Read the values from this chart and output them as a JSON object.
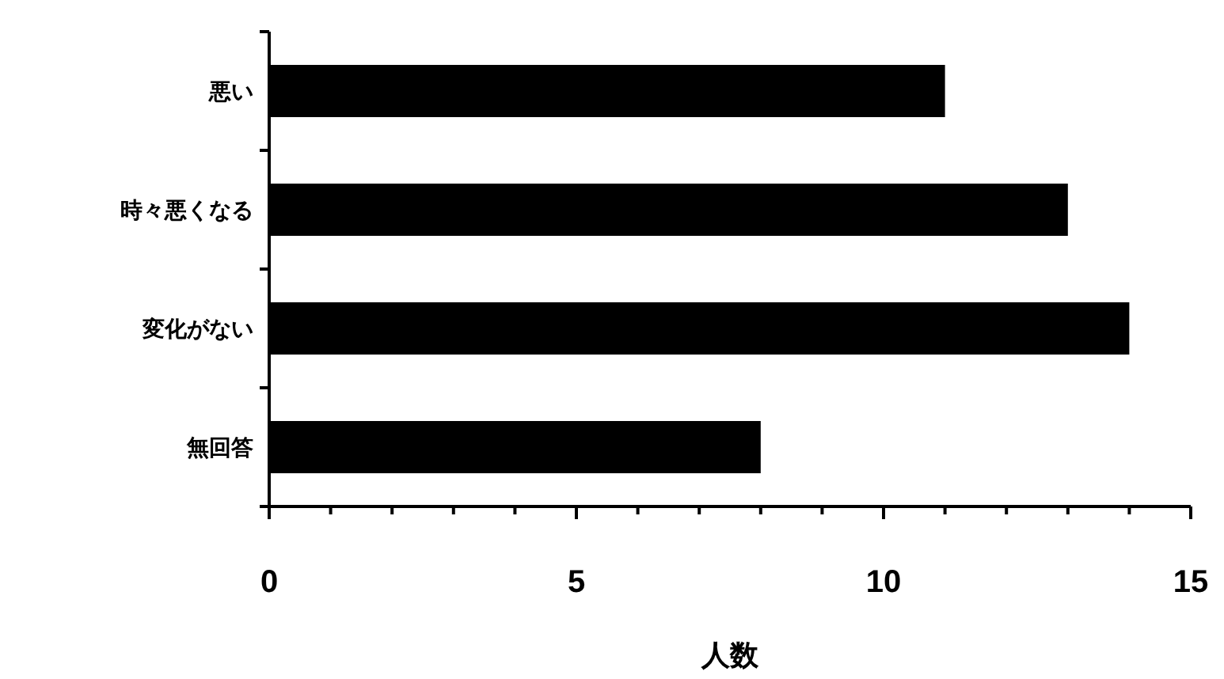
{
  "chart_data": {
    "type": "bar",
    "orientation": "horizontal",
    "xlabel": "人数",
    "categories": [
      "悪い",
      "時々悪くなる",
      "変化がない",
      "無回答"
    ],
    "values": [
      11,
      13,
      14,
      8
    ],
    "color": "#000000",
    "xlim": [
      0,
      15
    ],
    "xticks": [
      0,
      {
        "value": 1,
        "label": null
      },
      {
        "value": 2,
        "label": null
      },
      {
        "value": 3,
        "label": null
      },
      {
        "value": 4,
        "label": null
      },
      5,
      {
        "value": 6,
        "label": null
      },
      {
        "value": 7,
        "label": null
      },
      {
        "value": 8,
        "label": null
      },
      {
        "value": 9,
        "label": null
      },
      10,
      {
        "value": 11,
        "label": null
      },
      {
        "value": 12,
        "label": null
      },
      {
        "value": 13,
        "label": null
      },
      {
        "value": 14,
        "label": null
      },
      15
    ],
    "grid": false
  }
}
